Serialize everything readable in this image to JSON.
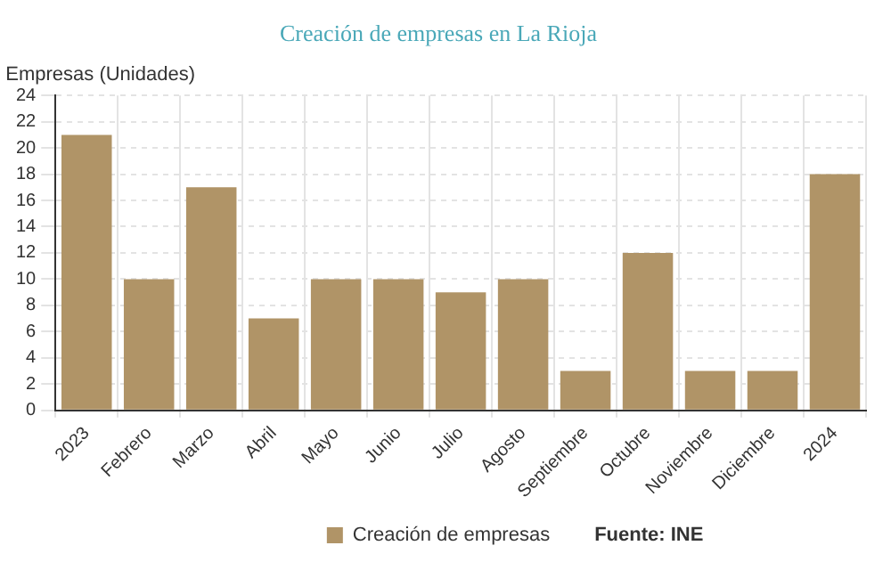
{
  "chart_data": {
    "type": "bar",
    "title": "Creación de empresas en La Rioja",
    "ylabel": "Empresas (Unidades)",
    "categories": [
      "2023",
      "Febrero",
      "Marzo",
      "Abril",
      "Mayo",
      "Junio",
      "Julio",
      "Agosto",
      "Septiembre",
      "Octubre",
      "Noviembre",
      "Diciembre",
      "2024"
    ],
    "series": [
      {
        "name": "Creación de empresas",
        "color": "#b09467",
        "values": [
          21,
          10,
          17,
          7,
          10,
          10,
          9,
          10,
          3,
          12,
          3,
          3,
          18
        ]
      }
    ],
    "ylim": [
      0,
      24
    ],
    "yticks": [
      0,
      2,
      4,
      6,
      8,
      10,
      12,
      14,
      16,
      18,
      20,
      22,
      24
    ],
    "grid": true,
    "legend": "bottom",
    "annotations": [
      "Fuente: INE"
    ]
  }
}
